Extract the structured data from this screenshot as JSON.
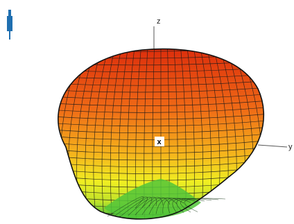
{
  "axes": {
    "z_label": "z",
    "y_label": "y",
    "x_label": "x"
  },
  "colors": {
    "top": "#e23a10",
    "middle": "#f08a1a",
    "lower": "#f3f01e",
    "bottom": "#3cc23a",
    "mesh": "#1a1a1a",
    "antenna_icon": "#1f6fb0"
  },
  "icons": {
    "antenna": "dipole-antenna-icon"
  }
}
